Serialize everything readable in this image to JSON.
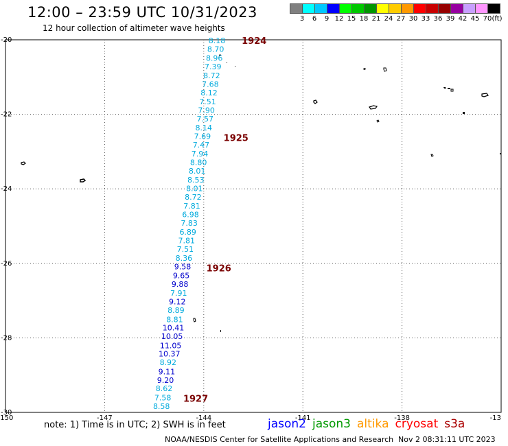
{
  "title": "12:00 – 23:59 UTC 10/31/2023",
  "subtitle": "12 hour collection of altimeter wave heights",
  "legend": {
    "colors": [
      "#808080",
      "#00ffff",
      "#00c8ff",
      "#0000ff",
      "#00ff00",
      "#00c800",
      "#009600",
      "#ffff00",
      "#ffcc00",
      "#ff9900",
      "#ff0000",
      "#c80000",
      "#960000",
      "#9600a0",
      "#c8a0ff",
      "#ff96ff",
      "#000000"
    ],
    "ticks": [
      "3",
      "6",
      "9",
      "12",
      "15",
      "18",
      "21",
      "24",
      "27",
      "30",
      "33",
      "36",
      "39",
      "42",
      "45",
      "70"
    ],
    "unit": "(ft)"
  },
  "axes": {
    "y_labels": [
      "-20",
      "-22",
      "-24",
      "-26",
      "-28",
      "-30"
    ],
    "x_labels": [
      "-150",
      "-147",
      "-144",
      "-141",
      "-138",
      "-13"
    ],
    "lat_range": [
      -30,
      -20
    ],
    "lon_range": [
      -150,
      -135
    ]
  },
  "track": {
    "points": [
      {
        "lat": -20.02,
        "lon": -143.6,
        "v": "8.18",
        "c": "#00aadd"
      },
      {
        "lat": -20.25,
        "lon": -143.64,
        "v": "8.70",
        "c": "#00aadd"
      },
      {
        "lat": -20.49,
        "lon": -143.68,
        "v": "8.96",
        "c": "#00aadd"
      },
      {
        "lat": -20.72,
        "lon": -143.72,
        "v": "7.39",
        "c": "#00aadd"
      },
      {
        "lat": -20.96,
        "lon": -143.76,
        "v": "8.72",
        "c": "#00aadd"
      },
      {
        "lat": -21.19,
        "lon": -143.8,
        "v": "7.68",
        "c": "#00aadd"
      },
      {
        "lat": -21.42,
        "lon": -143.84,
        "v": "8.12",
        "c": "#00aadd"
      },
      {
        "lat": -21.66,
        "lon": -143.88,
        "v": "7.51",
        "c": "#00aadd"
      },
      {
        "lat": -21.89,
        "lon": -143.92,
        "v": "7.90",
        "c": "#00aadd"
      },
      {
        "lat": -22.12,
        "lon": -143.96,
        "v": "7.57",
        "c": "#00aadd"
      },
      {
        "lat": -22.36,
        "lon": -144.0,
        "v": "8.14",
        "c": "#00aadd"
      },
      {
        "lat": -22.59,
        "lon": -144.04,
        "v": "7.69",
        "c": "#00aadd"
      },
      {
        "lat": -22.82,
        "lon": -144.08,
        "v": "7.47",
        "c": "#00aadd"
      },
      {
        "lat": -23.06,
        "lon": -144.12,
        "v": "7.94",
        "c": "#00aadd"
      },
      {
        "lat": -23.29,
        "lon": -144.16,
        "v": "8.80",
        "c": "#00aadd"
      },
      {
        "lat": -23.52,
        "lon": -144.2,
        "v": "8.01",
        "c": "#00aadd"
      },
      {
        "lat": -23.76,
        "lon": -144.24,
        "v": "8.53",
        "c": "#00aadd"
      },
      {
        "lat": -23.99,
        "lon": -144.28,
        "v": "8.01",
        "c": "#00aadd"
      },
      {
        "lat": -24.22,
        "lon": -144.32,
        "v": "8.72",
        "c": "#00aadd"
      },
      {
        "lat": -24.46,
        "lon": -144.36,
        "v": "7.81",
        "c": "#00aadd"
      },
      {
        "lat": -24.69,
        "lon": -144.4,
        "v": "6.98",
        "c": "#00aadd"
      },
      {
        "lat": -24.92,
        "lon": -144.44,
        "v": "7.83",
        "c": "#00aadd"
      },
      {
        "lat": -25.16,
        "lon": -144.48,
        "v": "6.89",
        "c": "#00aadd"
      },
      {
        "lat": -25.39,
        "lon": -144.52,
        "v": "7.81",
        "c": "#00aadd"
      },
      {
        "lat": -25.62,
        "lon": -144.56,
        "v": "7.51",
        "c": "#00aadd"
      },
      {
        "lat": -25.86,
        "lon": -144.6,
        "v": "8.36",
        "c": "#00aadd"
      },
      {
        "lat": -26.09,
        "lon": -144.64,
        "v": "9.58",
        "c": "#0000cc"
      },
      {
        "lat": -26.33,
        "lon": -144.68,
        "v": "9.65",
        "c": "#0000cc"
      },
      {
        "lat": -26.56,
        "lon": -144.72,
        "v": "9.88",
        "c": "#0000cc"
      },
      {
        "lat": -26.8,
        "lon": -144.76,
        "v": "7.91",
        "c": "#00aadd"
      },
      {
        "lat": -27.03,
        "lon": -144.8,
        "v": "9.12",
        "c": "#0000cc"
      },
      {
        "lat": -27.26,
        "lon": -144.84,
        "v": "8.89",
        "c": "#00aadd"
      },
      {
        "lat": -27.5,
        "lon": -144.88,
        "v": "8.81",
        "c": "#00aadd"
      },
      {
        "lat": -27.73,
        "lon": -144.92,
        "v": "10.41",
        "c": "#0000cc"
      },
      {
        "lat": -27.96,
        "lon": -144.96,
        "v": "10.05",
        "c": "#0000cc"
      },
      {
        "lat": -28.2,
        "lon": -145.0,
        "v": "11.05",
        "c": "#0000cc"
      },
      {
        "lat": -28.43,
        "lon": -145.04,
        "v": "10.37",
        "c": "#0000cc"
      },
      {
        "lat": -28.66,
        "lon": -145.08,
        "v": "8.92",
        "c": "#00aadd"
      },
      {
        "lat": -28.9,
        "lon": -145.12,
        "v": "9.11",
        "c": "#0000cc"
      },
      {
        "lat": -29.13,
        "lon": -145.16,
        "v": "9.20",
        "c": "#0000cc"
      },
      {
        "lat": -29.36,
        "lon": -145.2,
        "v": "8.62",
        "c": "#00aadd"
      },
      {
        "lat": -29.6,
        "lon": -145.24,
        "v": "7.58",
        "c": "#00aadd"
      },
      {
        "lat": -29.83,
        "lon": -145.28,
        "v": "8.58",
        "c": "#00aadd"
      }
    ],
    "time_labels": [
      {
        "lat": -20.02,
        "lon": -142.85,
        "t": "1924"
      },
      {
        "lat": -22.62,
        "lon": -143.4,
        "t": "1925"
      },
      {
        "lat": -26.12,
        "lon": -143.92,
        "t": "1926"
      },
      {
        "lat": -29.62,
        "lon": -144.62,
        "t": "1927"
      }
    ]
  },
  "note": "note: 1) Time is in UTC; 2) SWH is in feet",
  "missions": [
    {
      "name": "jason2",
      "color": "#0000ff"
    },
    {
      "name": "jason3",
      "color": "#009900"
    },
    {
      "name": "altika",
      "color": "#ff9900"
    },
    {
      "name": "cryosat",
      "color": "#ff0000"
    },
    {
      "name": "s3a",
      "color": "#aa0000"
    }
  ],
  "credit_org": "NOAA/NESDIS Center for Satellite Applications and Research",
  "credit_time": "Nov  2 08:31:11 UTC 2023"
}
